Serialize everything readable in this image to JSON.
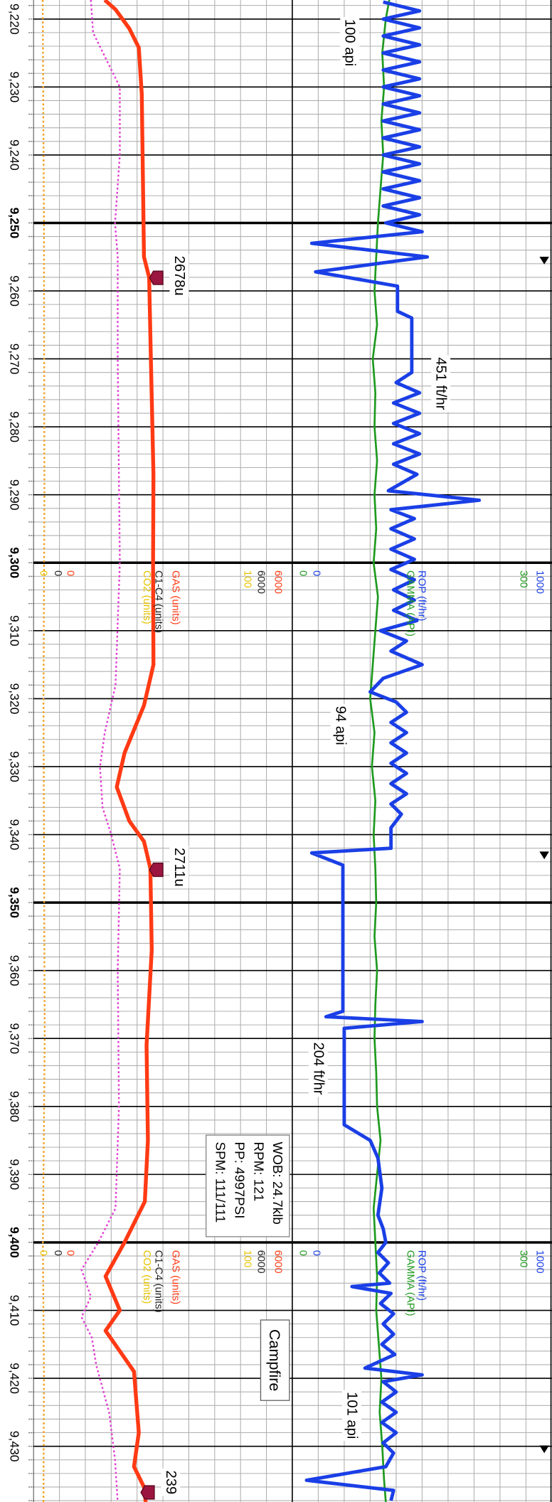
{
  "chart_data": {
    "type": "line",
    "ylim": [
      9217.2,
      9438.2
    ],
    "yticks": [
      {
        "value": 9220,
        "label": "9,220"
      },
      {
        "value": 9230,
        "label": "9,230"
      },
      {
        "value": 9240,
        "label": "9,240"
      },
      {
        "value": 9250,
        "label": "9,250"
      },
      {
        "value": 9260,
        "label": "9,260"
      },
      {
        "value": 9270,
        "label": "9,270"
      },
      {
        "value": 9280,
        "label": "9,280"
      },
      {
        "value": 9290,
        "label": "9,290"
      },
      {
        "value": 9300,
        "label": "9,300"
      },
      {
        "value": 9310,
        "label": "9,310"
      },
      {
        "value": 9320,
        "label": "9,320"
      },
      {
        "value": 9330,
        "label": "9,330"
      },
      {
        "value": 9340,
        "label": "9,340"
      },
      {
        "value": 9350,
        "label": "9,350"
      },
      {
        "value": 9360,
        "label": "9,360"
      },
      {
        "value": 9370,
        "label": "9,370"
      },
      {
        "value": 9380,
        "label": "9,380"
      },
      {
        "value": 9390,
        "label": "9,390"
      },
      {
        "value": 9400,
        "label": "9,400"
      },
      {
        "value": 9410,
        "label": "9,410"
      },
      {
        "value": 9420,
        "label": "9,420"
      },
      {
        "value": 9430,
        "label": "9,430"
      }
    ],
    "minor_grid_step": 2,
    "grid": true,
    "series": [
      {
        "name": "GAS (units)",
        "color": "#ff3a14",
        "track": "left",
        "scale": [
          0,
          6000
        ],
        "depth": [
          9217.2,
          9218.6,
          9221.4,
          9224.2,
          9231,
          9255,
          9258,
          9270,
          9287,
          9300,
          9315,
          9321,
          9328,
          9333,
          9338,
          9341,
          9345,
          9357,
          9371,
          9385,
          9394,
          9400,
          9405,
          9410,
          9413,
          9416,
          9419,
          9428,
          9433,
          9436,
          9438.2
        ],
        "values": [
          1650,
          1900,
          2220,
          2440,
          2510,
          2560,
          2680,
          2720,
          2780,
          2770,
          2780,
          2560,
          2110,
          1930,
          2220,
          2560,
          2710,
          2740,
          2620,
          2650,
          2580,
          2110,
          1670,
          2000,
          1670,
          2000,
          2330,
          2440,
          2330,
          2560,
          2600
        ]
      },
      {
        "name": "C1-C4 (units)",
        "color": "#e33cd2",
        "label_color": "#222222",
        "dashed": true,
        "track": "left",
        "scale": [
          0,
          6000
        ],
        "depth": [
          9217.2,
          9222,
          9230,
          9240,
          9250,
          9255,
          9270,
          9300,
          9318,
          9325,
          9330,
          9336,
          9340,
          9345,
          9360,
          9380,
          9395,
          9400,
          9404,
          9408,
          9411,
          9414,
          9418,
          9425,
          9432,
          9438.2
        ],
        "values": [
          1330,
          1380,
          2000,
          2000,
          1890,
          1950,
          1950,
          2000,
          1900,
          1650,
          1540,
          1600,
          1800,
          2000,
          1950,
          1980,
          1900,
          1500,
          1110,
          1330,
          1110,
          1350,
          1450,
          1750,
          1890,
          1950
        ]
      },
      {
        "name": "CO2 (units)",
        "color": "#f0a020",
        "label_color": "#e6c200",
        "dashed": true,
        "track": "left",
        "scale": [
          0,
          100
        ],
        "depth": [
          9217.2,
          9250,
          9290,
          9320,
          9340,
          9370,
          9400,
          9420,
          9438.2
        ],
        "values": [
          3.5,
          4,
          4.2,
          3.8,
          4,
          4.3,
          3.6,
          4,
          3.8
        ]
      },
      {
        "name": "ROP (ft/hr)",
        "color": "#1a3fe6",
        "track": "right",
        "scale": [
          0,
          1000
        ],
        "depth": [
          9217.5,
          9218.8,
          9220,
          9221.3,
          9222.5,
          9223.8,
          9225,
          9226.3,
          9227.5,
          9228.8,
          9230,
          9231.3,
          9232.5,
          9233.8,
          9235,
          9236.3,
          9237.5,
          9238.8,
          9240,
          9241.3,
          9242.5,
          9243.8,
          9245,
          9246.3,
          9247.5,
          9248.8,
          9250,
          9251.3,
          9253,
          9255,
          9257.2,
          9259.3,
          9263,
          9264,
          9272,
          9273.5,
          9275,
          9276.5,
          9278,
          9279.5,
          9281,
          9282.5,
          9284,
          9285.5,
          9287,
          9289.4,
          9290.8,
          9292.2,
          9293.5,
          9295,
          9296.5,
          9298,
          9299.5,
          9301,
          9302.5,
          9304,
          9305.5,
          9307,
          9308.5,
          9310,
          9311.5,
          9313,
          9315,
          9317,
          9319,
          9320.5,
          9322,
          9323.5,
          9325,
          9326.5,
          9328,
          9329.5,
          9331,
          9332.5,
          9334,
          9335.5,
          9337,
          9339,
          9342,
          9342.7,
          9344.5,
          9366,
          9366.8,
          9367.5,
          9368.5,
          9382.7,
          9385,
          9387.6,
          9392,
          9396,
          9398,
          9400,
          9401.5,
          9403,
          9404.5,
          9406,
          9406.5,
          9407.5,
          9409,
          9410.5,
          9412,
          9413.5,
          9415,
          9416.5,
          9418.5,
          9419.5,
          9420.5,
          9422,
          9423.5,
          9425,
          9426.5,
          9428,
          9429.5,
          9431,
          9433,
          9435,
          9436.5,
          9438
        ],
        "values": [
          350,
          490,
          350,
          490,
          350,
          490,
          350,
          490,
          350,
          490,
          350,
          490,
          350,
          490,
          350,
          490,
          350,
          490,
          350,
          490,
          350,
          490,
          350,
          490,
          350,
          490,
          360,
          500,
          75,
          520,
          90,
          405,
          405,
          460,
          460,
          400,
          490,
          390,
          490,
          390,
          490,
          390,
          490,
          390,
          480,
          370,
          720,
          380,
          470,
          380,
          470,
          380,
          470,
          380,
          470,
          390,
          470,
          390,
          480,
          340,
          440,
          380,
          500,
          350,
          300,
          400,
          440,
          380,
          440,
          380,
          440,
          380,
          440,
          380,
          440,
          380,
          420,
          380,
          380,
          75,
          195,
          195,
          130,
          500,
          200,
          200,
          300,
          330,
          345,
          330,
          350,
          360,
          330,
          370,
          335,
          375,
          230,
          380,
          340,
          390,
          350,
          390,
          345,
          395,
          280,
          500,
          350,
          400,
          345,
          400,
          345,
          400,
          350,
          390,
          360,
          55,
          390,
          380
        ]
      },
      {
        "name": "GAMMA (API)",
        "color": "#1f9a1f",
        "track": "right",
        "scale": [
          0,
          300
        ],
        "depth": [
          9217.2,
          9220,
          9225,
          9230,
          9235,
          9240,
          9245,
          9250,
          9255,
          9260,
          9265,
          9270,
          9275,
          9280,
          9285,
          9290,
          9295,
          9300,
          9305,
          9310,
          9315,
          9320,
          9325,
          9330,
          9335,
          9340,
          9345,
          9350,
          9355,
          9360,
          9365,
          9370,
          9375,
          9380,
          9385,
          9390,
          9395,
          9400,
          9405,
          9410,
          9415,
          9420,
          9425,
          9430,
          9435,
          9438.2
        ],
        "values": [
          112,
          108,
          104,
          106,
          103,
          105,
          102,
          99,
          97,
          95,
          98,
          93,
          96,
          95,
          98,
          95,
          97,
          94,
          99,
          96,
          93,
          90,
          95,
          92,
          96,
          94,
          96,
          97,
          95,
          98,
          96,
          95,
          97,
          98,
          102,
          98,
          94,
          96,
          98,
          97,
          100,
          103,
          101,
          104,
          106,
          108
        ]
      }
    ],
    "annotations": [
      "100 api",
      "451 ft/hr",
      "94 api",
      "204 ft/hr",
      "101 api",
      "2678u",
      "2711u",
      "239"
    ],
    "info_box": [
      "WOB: 24.7klb",
      "RPM: 121",
      "PP: 4997PSI",
      "SPM: 111/111"
    ],
    "label": "Campfire"
  }
}
